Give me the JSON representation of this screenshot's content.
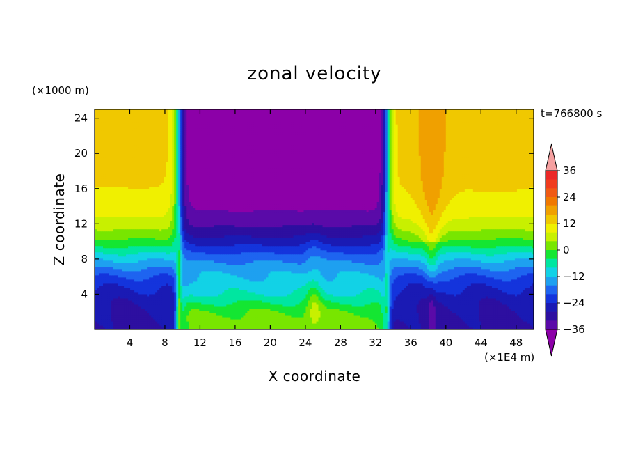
{
  "chart_data": {
    "type": "heatmap",
    "title": "zonal velocity",
    "xlabel": "X coordinate",
    "ylabel": "Z coordinate",
    "x_unit": "(×1E4 m)",
    "y_unit": "(×1000 m)",
    "time_label": "t=766800 s",
    "xlim": [
      0,
      50
    ],
    "ylim": [
      0,
      25
    ],
    "x_ticks": [
      4,
      8,
      12,
      16,
      20,
      24,
      28,
      32,
      36,
      40,
      44,
      48
    ],
    "y_ticks": [
      4,
      8,
      12,
      16,
      20,
      24
    ],
    "x_tick_labels": [
      "4",
      "8",
      "12",
      "16",
      "20",
      "24",
      "28",
      "32",
      "36",
      "40",
      "44",
      "48"
    ],
    "y_tick_labels": [
      "4",
      "8",
      "12",
      "16",
      "20",
      "24"
    ],
    "colorbar": {
      "min": -42,
      "max": 42,
      "step": 6,
      "extend": "both",
      "tick_values": [
        36,
        24,
        12,
        0,
        -12,
        -24,
        -36
      ],
      "tick_labels": [
        "36",
        "24",
        "12",
        "0",
        "−12",
        "−24",
        "−36"
      ],
      "colors": [
        "#8c00a8",
        "#5a0aa8",
        "#2d0fa0",
        "#1a1ab4",
        "#1434dc",
        "#1e64f0",
        "#1ea0f0",
        "#12d2e6",
        "#00e6a0",
        "#14e632",
        "#78e600",
        "#c8f000",
        "#f0f000",
        "#f0c800",
        "#f0a000",
        "#f07800",
        "#f05a14",
        "#f03c1e",
        "#eb2828",
        "#f5a0a0"
      ]
    },
    "velocity_structure": {
      "description_free_fields_only": true,
      "westerly_max_left_x": [
        0,
        8
      ],
      "easterly_core_x": [
        11,
        33
      ],
      "westerly_max_right_x": [
        35,
        50
      ],
      "shear_lines_x": [
        9.5,
        33.2
      ]
    }
  }
}
